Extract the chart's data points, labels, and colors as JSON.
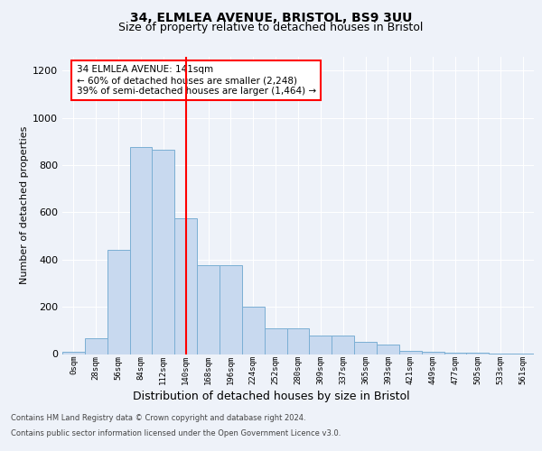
{
  "title_line1": "34, ELMLEA AVENUE, BRISTOL, BS9 3UU",
  "title_line2": "Size of property relative to detached houses in Bristol",
  "xlabel": "Distribution of detached houses by size in Bristol",
  "ylabel": "Number of detached properties",
  "bar_labels": [
    "0sqm",
    "28sqm",
    "56sqm",
    "84sqm",
    "112sqm",
    "140sqm",
    "168sqm",
    "196sqm",
    "224sqm",
    "252sqm",
    "280sqm",
    "309sqm",
    "337sqm",
    "365sqm",
    "393sqm",
    "421sqm",
    "449sqm",
    "477sqm",
    "505sqm",
    "533sqm",
    "561sqm"
  ],
  "bar_values": [
    10,
    65,
    440,
    875,
    865,
    575,
    375,
    375,
    200,
    110,
    110,
    80,
    80,
    50,
    40,
    15,
    10,
    5,
    5,
    2,
    2
  ],
  "bar_color": "#c8d9ef",
  "bar_edgecolor": "#7bafd4",
  "vline_x": 5,
  "annotation_text": "34 ELMLEA AVENUE: 141sqm\n← 60% of detached houses are smaller (2,248)\n39% of semi-detached houses are larger (1,464) →",
  "annotation_box_color": "white",
  "annotation_box_edgecolor": "red",
  "vline_color": "red",
  "ylim_max": 1260,
  "yticks": [
    0,
    200,
    400,
    600,
    800,
    1000,
    1200
  ],
  "footnote_line1": "Contains HM Land Registry data © Crown copyright and database right 2024.",
  "footnote_line2": "Contains public sector information licensed under the Open Government Licence v3.0.",
  "background_color": "#eef2f9",
  "grid_color": "white",
  "fig_background": "#eef2f9",
  "title1_fontsize": 10,
  "title2_fontsize": 9,
  "ylabel_fontsize": 8,
  "xlabel_fontsize": 9,
  "ytick_fontsize": 8,
  "xtick_fontsize": 6.5
}
